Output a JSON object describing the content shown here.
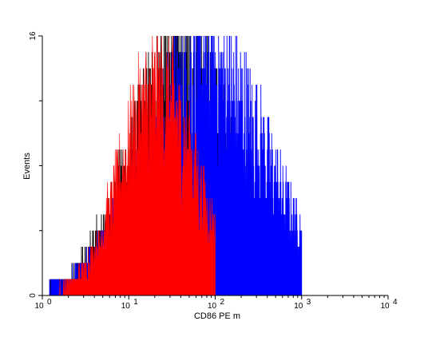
{
  "chart_data": {
    "type": "histogram",
    "xlabel": "CD86 PE m",
    "ylabel": "Events",
    "x_scale": "log",
    "xlim": [
      1,
      10000
    ],
    "ylim": [
      0,
      16
    ],
    "x_ticks": [
      {
        "value": 1,
        "base": "10",
        "exp": "0"
      },
      {
        "value": 10,
        "base": "10",
        "exp": "1"
      },
      {
        "value": 100,
        "base": "10",
        "exp": "2"
      },
      {
        "value": 1000,
        "base": "10",
        "exp": "3"
      },
      {
        "value": 10000,
        "base": "10",
        "exp": "4"
      }
    ],
    "y_tick_labels": [
      {
        "value": 0,
        "label": "0"
      },
      {
        "value": 16,
        "label": "16"
      }
    ],
    "y_minor_ticks": [
      4,
      8,
      12
    ],
    "grid": false,
    "legend": "none",
    "series": [
      {
        "color": "#000000",
        "style": "outline",
        "peak_x": 40,
        "peak_y": 16,
        "range": [
          1.2,
          320
        ]
      },
      {
        "color": "#0000ff",
        "style": "outline",
        "peak_x": 80,
        "peak_y": 16,
        "range": [
          1.2,
          1000
        ]
      },
      {
        "color": "#ff0000",
        "style": "filled",
        "peak_x": 22,
        "peak_y": 14,
        "range": [
          1.5,
          100
        ]
      }
    ]
  }
}
